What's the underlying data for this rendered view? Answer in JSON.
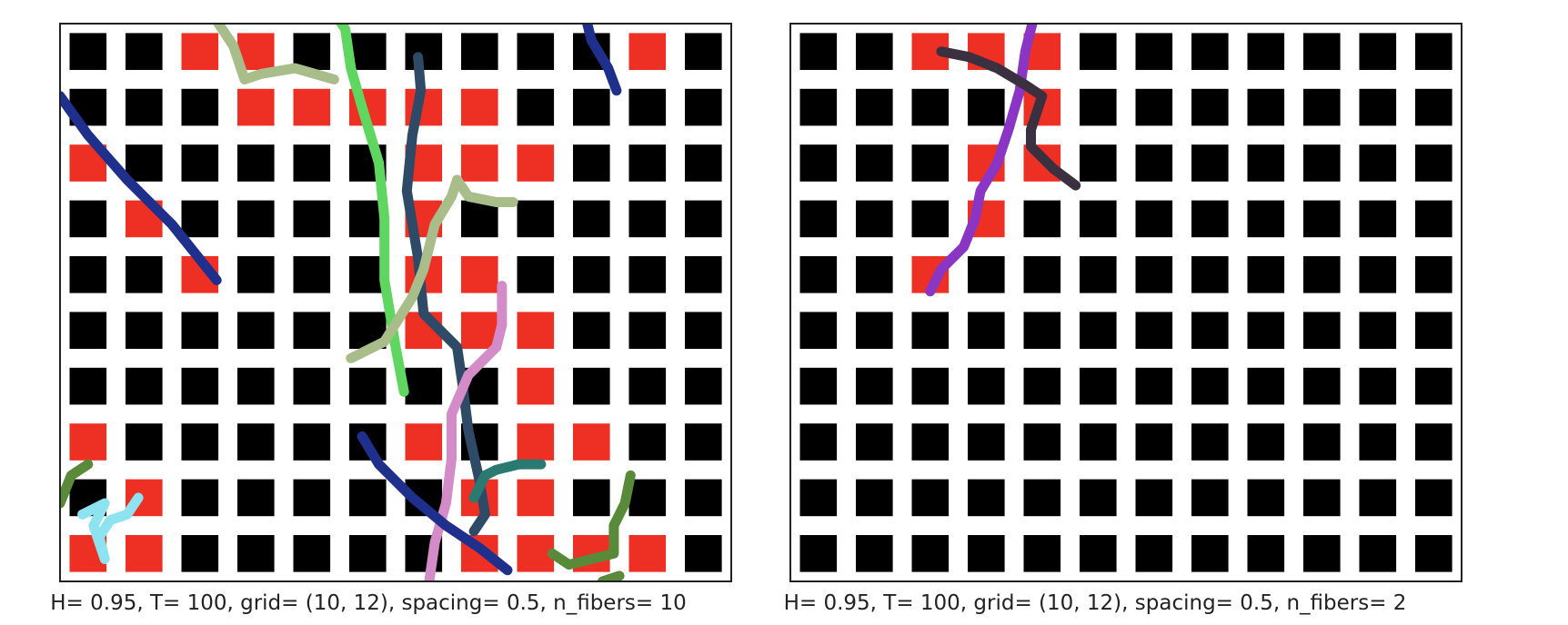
{
  "chart_data": [
    {
      "type": "heatmap",
      "title": "",
      "xlabel": "H= 0.95, T= 100, grid= (10, 12), spacing= 0.5, n_fibers= 10",
      "ylabel": "",
      "grid_rows": 10,
      "grid_cols": 12,
      "xlim": [
        0,
        12
      ],
      "ylim": [
        0,
        10
      ],
      "colors": {
        "empty": "#000000",
        "occupied": "#ee3024",
        "frame": "#222222"
      },
      "occupied_cells": [
        [
          0,
          2
        ],
        [
          0,
          3
        ],
        [
          0,
          10
        ],
        [
          1,
          3
        ],
        [
          1,
          4
        ],
        [
          1,
          5
        ],
        [
          1,
          6
        ],
        [
          1,
          7
        ],
        [
          2,
          0
        ],
        [
          2,
          6
        ],
        [
          2,
          7
        ],
        [
          2,
          8
        ],
        [
          3,
          1
        ],
        [
          3,
          6
        ],
        [
          4,
          2
        ],
        [
          4,
          6
        ],
        [
          4,
          7
        ],
        [
          5,
          6
        ],
        [
          5,
          7
        ],
        [
          5,
          8
        ],
        [
          6,
          8
        ],
        [
          7,
          0
        ],
        [
          7,
          6
        ],
        [
          7,
          8
        ],
        [
          7,
          9
        ],
        [
          8,
          1
        ],
        [
          8,
          7
        ],
        [
          8,
          8
        ],
        [
          9,
          0
        ],
        [
          9,
          1
        ],
        [
          9,
          7
        ],
        [
          9,
          8
        ],
        [
          9,
          9
        ],
        [
          9,
          10
        ]
      ],
      "series": [
        {
          "color": "#1f2f8c",
          "points": [
            [
              0.0,
              1.3
            ],
            [
              0.5,
              2.0
            ],
            [
              1.2,
              2.8
            ],
            [
              2.0,
              3.6
            ],
            [
              2.8,
              4.6
            ]
          ]
        },
        {
          "color": "#1f2f8c",
          "points": [
            [
              9.3,
              -0.5
            ],
            [
              9.5,
              0.3
            ],
            [
              9.8,
              0.8
            ],
            [
              9.95,
              1.2
            ]
          ]
        },
        {
          "color": "#a9bd8a",
          "points": [
            [
              2.5,
              -0.5
            ],
            [
              3.1,
              0.4
            ],
            [
              3.3,
              1.0
            ],
            [
              3.6,
              0.9
            ],
            [
              4.2,
              0.8
            ],
            [
              4.9,
              1.0
            ]
          ]
        },
        {
          "color": "#5fd65f",
          "points": [
            [
              4.7,
              -0.5
            ],
            [
              5.1,
              0.1
            ],
            [
              5.2,
              0.8
            ],
            [
              5.4,
              1.5
            ],
            [
              5.7,
              2.5
            ],
            [
              5.8,
              3.5
            ],
            [
              5.8,
              4.6
            ],
            [
              6.0,
              5.8
            ],
            [
              6.15,
              6.6
            ]
          ]
        },
        {
          "color": "#2f4a66",
          "points": [
            [
              6.4,
              0.6
            ],
            [
              6.45,
              1.2
            ],
            [
              6.3,
              2.0
            ],
            [
              6.2,
              3.0
            ],
            [
              6.4,
              4.2
            ],
            [
              6.5,
              5.2
            ],
            [
              7.1,
              5.8
            ],
            [
              7.2,
              6.5
            ],
            [
              7.3,
              7.3
            ],
            [
              7.5,
              8.2
            ],
            [
              7.6,
              8.8
            ],
            [
              7.4,
              9.1
            ]
          ]
        },
        {
          "color": "#a9bd8a",
          "points": [
            [
              5.2,
              6.0
            ],
            [
              5.8,
              5.7
            ],
            [
              6.3,
              4.9
            ],
            [
              6.5,
              4.4
            ],
            [
              6.7,
              3.6
            ],
            [
              7.0,
              3.1
            ],
            [
              7.1,
              2.8
            ],
            [
              7.3,
              3.1
            ],
            [
              7.8,
              3.2
            ],
            [
              8.1,
              3.2
            ]
          ]
        },
        {
          "color": "#d38cc8",
          "points": [
            [
              7.9,
              4.7
            ],
            [
              7.9,
              5.4
            ],
            [
              7.8,
              5.8
            ],
            [
              7.3,
              6.3
            ],
            [
              7.0,
              7.0
            ],
            [
              7.0,
              7.8
            ],
            [
              6.9,
              8.6
            ],
            [
              6.7,
              9.3
            ],
            [
              6.6,
              10.0
            ]
          ]
        },
        {
          "color": "#1f2f8c",
          "points": [
            [
              5.4,
              7.4
            ],
            [
              5.7,
              7.9
            ],
            [
              6.3,
              8.5
            ],
            [
              6.9,
              9.0
            ],
            [
              7.5,
              9.4
            ],
            [
              8.0,
              9.8
            ]
          ]
        },
        {
          "color": "#2a7a72",
          "points": [
            [
              7.4,
              8.5
            ],
            [
              7.6,
              8.1
            ],
            [
              7.8,
              8.0
            ],
            [
              8.2,
              7.9
            ],
            [
              8.6,
              7.9
            ]
          ]
        },
        {
          "color": "#588a3a",
          "points": [
            [
              0.0,
              8.6
            ],
            [
              0.2,
              8.1
            ],
            [
              0.5,
              7.9
            ]
          ]
        },
        {
          "color": "#8de4f0",
          "points": [
            [
              0.4,
              8.8
            ],
            [
              0.8,
              8.6
            ],
            [
              0.6,
              9.0
            ],
            [
              0.7,
              9.3
            ],
            [
              0.8,
              9.6
            ],
            [
              0.7,
              9.2
            ],
            [
              0.9,
              8.9
            ],
            [
              1.2,
              8.8
            ],
            [
              1.4,
              8.5
            ]
          ]
        },
        {
          "color": "#588a3a",
          "points": [
            [
              8.8,
              9.5
            ],
            [
              9.1,
              9.7
            ],
            [
              9.5,
              9.6
            ],
            [
              9.9,
              9.5
            ],
            [
              9.9,
              9.0
            ],
            [
              10.1,
              8.6
            ],
            [
              10.2,
              8.1
            ]
          ]
        },
        {
          "color": "#588a3a",
          "points": [
            [
              9.7,
              10.0
            ],
            [
              10.0,
              9.9
            ]
          ]
        }
      ]
    },
    {
      "type": "heatmap",
      "title": "",
      "xlabel": "H= 0.95, T= 100, grid= (10, 12), spacing= 0.5, n_fibers= 2",
      "ylabel": "",
      "grid_rows": 10,
      "grid_cols": 12,
      "xlim": [
        0,
        12
      ],
      "ylim": [
        0,
        10
      ],
      "colors": {
        "empty": "#000000",
        "occupied": "#ee3024",
        "frame": "#222222"
      },
      "occupied_cells": [
        [
          0,
          2
        ],
        [
          0,
          3
        ],
        [
          0,
          4
        ],
        [
          1,
          4
        ],
        [
          2,
          3
        ],
        [
          2,
          4
        ],
        [
          3,
          3
        ],
        [
          4,
          2
        ]
      ],
      "series": [
        {
          "color": "#8a35c4",
          "points": [
            [
              4.4,
              -0.3
            ],
            [
              4.2,
              0.5
            ],
            [
              4.1,
              1.2
            ],
            [
              3.9,
              1.9
            ],
            [
              3.7,
              2.5
            ],
            [
              3.4,
              3.0
            ],
            [
              3.3,
              3.5
            ],
            [
              3.1,
              4.0
            ],
            [
              2.7,
              4.4
            ],
            [
              2.5,
              4.8
            ]
          ]
        },
        {
          "color": "#3a3040",
          "points": [
            [
              2.7,
              0.5
            ],
            [
              3.2,
              0.6
            ],
            [
              3.7,
              0.8
            ],
            [
              4.2,
              1.1
            ],
            [
              4.5,
              1.3
            ],
            [
              4.3,
              1.9
            ],
            [
              4.3,
              2.2
            ],
            [
              4.7,
              2.6
            ],
            [
              5.1,
              2.9
            ]
          ]
        }
      ]
    }
  ]
}
